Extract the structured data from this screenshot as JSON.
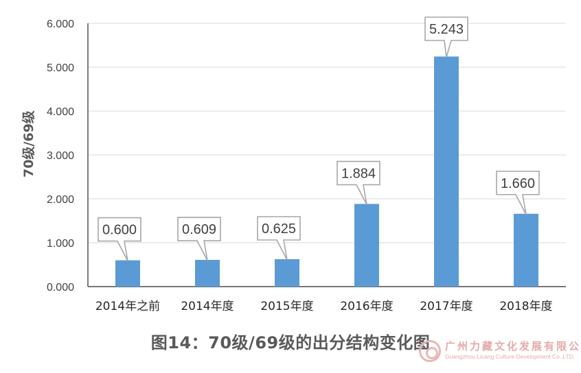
{
  "chart_data": {
    "type": "bar",
    "categories": [
      "2014年之前",
      "2014年度",
      "2015年度",
      "2016年度",
      "2017年度",
      "2018年度"
    ],
    "values": [
      0.6,
      0.609,
      0.625,
      1.884,
      5.243,
      1.66
    ],
    "data_labels": [
      "0.600",
      "0.609",
      "0.625",
      "1.884",
      "5.243",
      "1.660"
    ],
    "ylabel": "70级/69级",
    "yticks": [
      "0.000",
      "1.000",
      "2.000",
      "3.000",
      "4.000",
      "5.000",
      "6.000"
    ],
    "ylim": [
      0,
      6
    ],
    "grid": true,
    "legend": "none",
    "bar_color": "#5b9bd5",
    "gridline_color": "#d9d9d9",
    "label_box_border": "#a6a6a6"
  },
  "caption": "图14：70级/69级的出分结构变化图",
  "watermark": {
    "cn_text": "广州力藏文化发展有限公司",
    "en_text": "Guangzhou Licang Culture Development Co.,LTD."
  }
}
